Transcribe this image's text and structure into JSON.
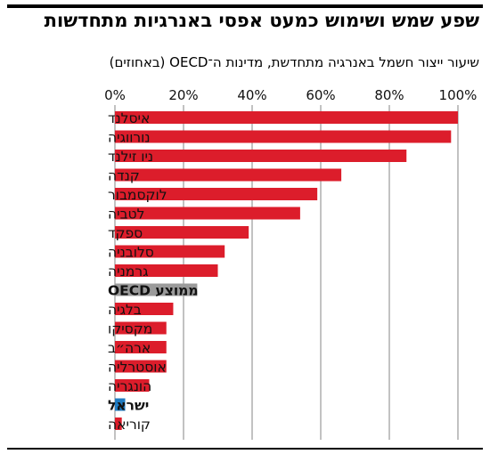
{
  "title": "שפע שמש ושימוש כמעט אפסי באנרגיות מתחדשות",
  "subtitle": "שיעור ייצור חשמל באנרגיה מתחדשת, מדינות ה־OECD (באחוזים)",
  "colors": {
    "bar": "#dc1d2b",
    "oecd_average": "#9b9b9b",
    "israel": "#1f7bc2",
    "grid": "#999999",
    "text": "#111111"
  },
  "chart_data": {
    "type": "bar",
    "orientation": "horizontal",
    "title": "שפע שמש ושימוש כמעט אפסי באנרגיות מתחדשות",
    "subtitle": "שיעור ייצור חשמל באנרגיה מתחדשת, מדינות ה־OECD (באחוזים)",
    "xlim": [
      0,
      100
    ],
    "x_ticks": [
      "0%",
      "20%",
      "40%",
      "60%",
      "80%",
      "100%"
    ],
    "x_tick_values": [
      0,
      20,
      40,
      60,
      80,
      100
    ],
    "grid": true,
    "categories": [
      "איסלנד",
      "נורווגיה",
      "ניו זילנד",
      "קנדה",
      "לוקסמבור",
      "לטביה",
      "ספקד",
      "סלובניה",
      "גרמניה",
      "ממוצע OECD",
      "בלגיה",
      "מקסיקו",
      "ארה״ב",
      "אוסטרליה",
      "הונגריה",
      "ישראל",
      "קוריאה"
    ],
    "values": [
      100,
      98,
      85,
      66,
      59,
      54,
      39,
      32,
      30,
      24,
      17,
      15,
      15,
      15,
      10,
      3,
      2
    ],
    "highlight": {
      "ממוצע OECD": "oecd_average",
      "ישראל": "israel"
    }
  }
}
